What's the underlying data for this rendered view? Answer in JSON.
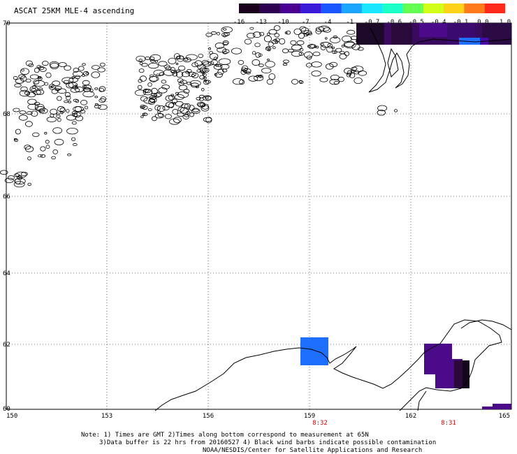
{
  "title": "ASCAT 25KM MLE-4 ascending",
  "colorbar": {
    "labels": [
      "-16",
      "-13",
      "-10",
      "-7",
      "-4",
      "-1",
      "-0.7",
      "-0.6",
      "-0.5",
      "-0.4",
      "-0.1",
      "0.0",
      "1.0"
    ],
    "colors": [
      "#1a001a",
      "#2e0050",
      "#4a0090",
      "#3a1ad8",
      "#1a56ff",
      "#1aa6ff",
      "#1ae6ff",
      "#1affc8",
      "#64ff50",
      "#d2ff1a",
      "#ffd21a",
      "#ff7a1a",
      "#ff2a1a"
    ]
  },
  "axes": {
    "lat_labels": [
      "70",
      "68",
      "66",
      "64",
      "62",
      "60"
    ],
    "lon_labels": [
      "150",
      "153",
      "156",
      "159",
      "162",
      "165"
    ]
  },
  "pass_times": [
    "8:32",
    "8:31"
  ],
  "notes": [
    "Note: 1) Times are GMT 2)Times along bottom correspond to measurement at 65N",
    "3)Data buffer is 22 hrs from 20160527 4) Black wind barbs indicate possible contamination",
    "NOAA/NESDIS/Center for Satellite Applications and Research"
  ],
  "colors": {
    "swath_dark": "#2a0a3a",
    "swath_purple": "#4a0a8a",
    "swath_blue": "#1f6fff"
  }
}
